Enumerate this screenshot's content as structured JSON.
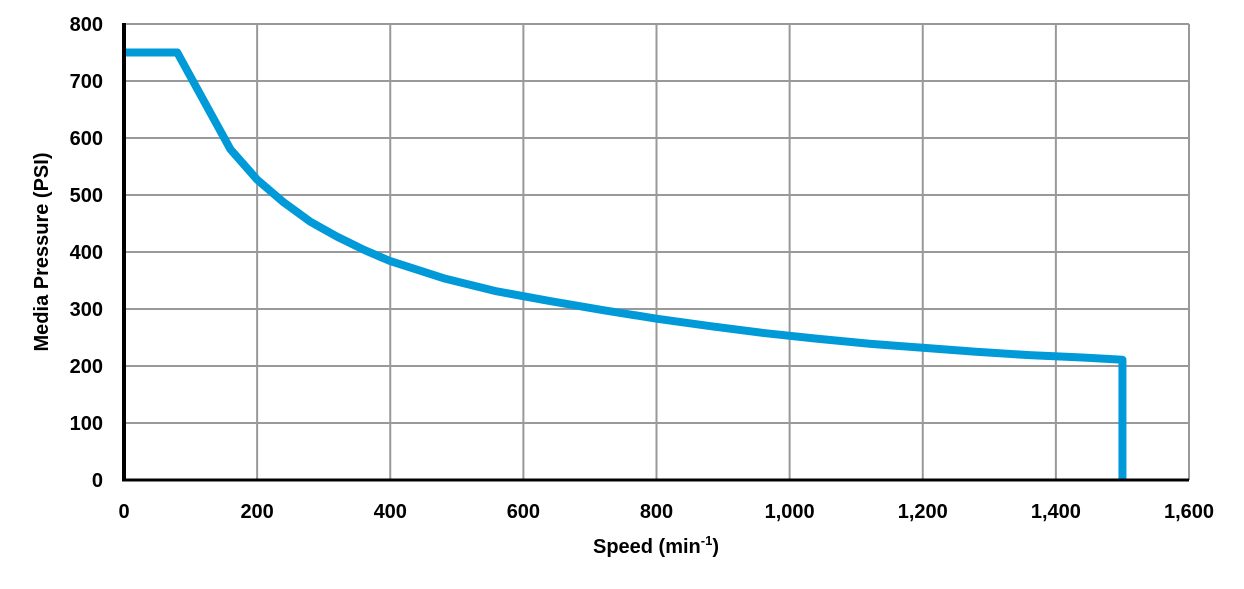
{
  "chart_data": {
    "type": "line",
    "title": "",
    "xlabel": {
      "main": "Speed (min",
      "sup": "-1",
      "end": ")"
    },
    "ylabel": "Media Pressure (PSI)",
    "xlim": [
      0,
      1600
    ],
    "ylim": [
      0,
      800
    ],
    "xticks": [
      0,
      200,
      400,
      600,
      800,
      1000,
      1200,
      1400,
      1600
    ],
    "xtick_labels": [
      "0",
      "200",
      "400",
      "600",
      "800",
      "1,000",
      "1,200",
      "1,400",
      "1,600"
    ],
    "yticks": [
      0,
      100,
      200,
      300,
      400,
      500,
      600,
      700,
      800
    ],
    "ytick_labels": [
      "0",
      "100",
      "200",
      "300",
      "400",
      "500",
      "600",
      "700",
      "800"
    ],
    "grid": true,
    "legend": "none",
    "series": [
      {
        "color": "#009ad8",
        "x": [
          0,
          80,
          160,
          200,
          240,
          280,
          320,
          360,
          400,
          480,
          560,
          640,
          720,
          800,
          880,
          960,
          1040,
          1120,
          1200,
          1280,
          1360,
          1440,
          1500,
          1500
        ],
        "y": [
          750,
          750,
          580,
          527,
          487,
          453,
          427,
          404,
          384,
          354,
          331,
          314,
          298,
          283,
          270,
          258,
          248,
          239,
          232,
          225,
          219,
          215,
          211,
          0
        ]
      }
    ]
  }
}
